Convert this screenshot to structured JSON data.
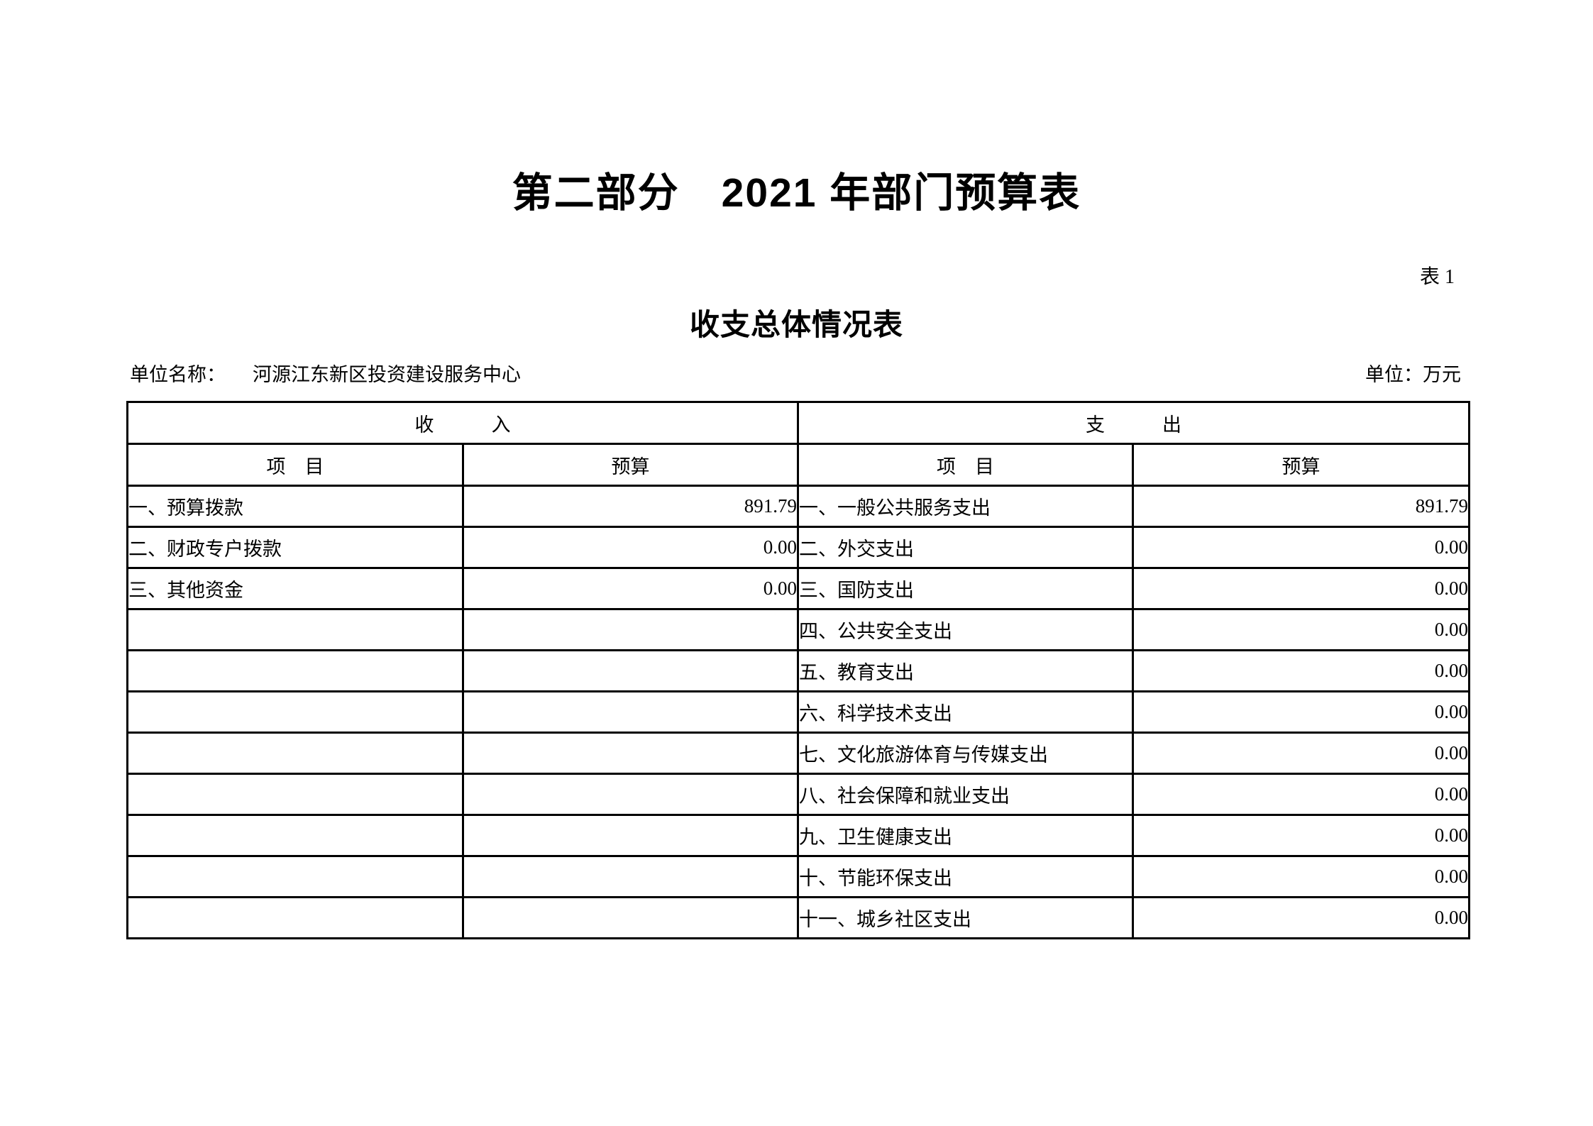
{
  "page": {
    "title": "第二部分　2021 年部门预算表",
    "table_label": "表 1",
    "subtitle": "收支总体情况表",
    "unit_name_label": "单位名称：",
    "unit_name": "河源江东新区投资建设服务中心",
    "unit_label": "单位：万元"
  },
  "table": {
    "income_header": "收　　　入",
    "expenditure_header": "支　　　出",
    "item_column_label": "项　目",
    "budget_column_label": "预算",
    "income_rows": [
      {
        "item": "一、预算拨款",
        "budget": "891.79"
      },
      {
        "item": "二、财政专户拨款",
        "budget": "0.00"
      },
      {
        "item": "三、其他资金",
        "budget": "0.00"
      }
    ],
    "expenditure_rows": [
      {
        "item": "一、一般公共服务支出",
        "budget": "891.79"
      },
      {
        "item": "二、外交支出",
        "budget": "0.00"
      },
      {
        "item": "三、国防支出",
        "budget": "0.00"
      },
      {
        "item": "四、公共安全支出",
        "budget": "0.00"
      },
      {
        "item": "五、教育支出",
        "budget": "0.00"
      },
      {
        "item": "六、科学技术支出",
        "budget": "0.00"
      },
      {
        "item": "七、文化旅游体育与传媒支出",
        "budget": "0.00"
      },
      {
        "item": "八、社会保障和就业支出",
        "budget": "0.00"
      },
      {
        "item": "九、卫生健康支出",
        "budget": "0.00"
      },
      {
        "item": "十、节能环保支出",
        "budget": "0.00"
      },
      {
        "item": "十一、城乡社区支出",
        "budget": "0.00"
      }
    ]
  }
}
